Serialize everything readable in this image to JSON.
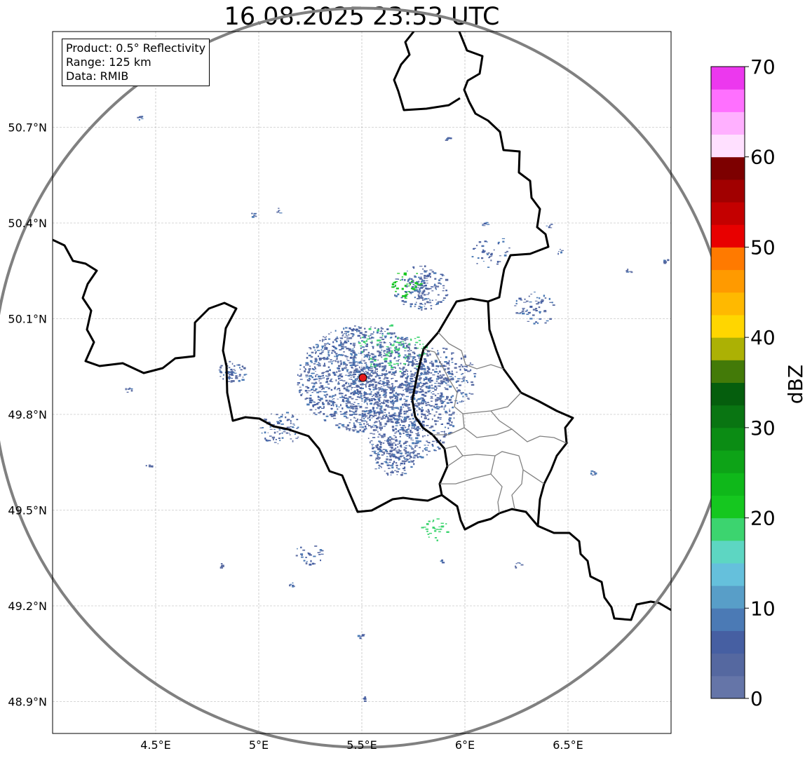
{
  "title": "16.08.2025 23:53 UTC",
  "info": {
    "product": "Product: 0.5° Reflectivity",
    "range": "Range: 125 km",
    "data": "Data: RMIB"
  },
  "map": {
    "lon_range": [
      4.0,
      7.0
    ],
    "lat_range": [
      48.8,
      51.0
    ],
    "lon_ticks": [
      "4.5°E",
      "5°E",
      "5.5°E",
      "6°E",
      "6.5°E"
    ],
    "lon_tick_values": [
      4.5,
      5.0,
      5.5,
      6.0,
      6.5
    ],
    "lat_ticks": [
      "50.7°N",
      "50.4°N",
      "50.1°N",
      "49.8°N",
      "49.5°N",
      "49.2°N",
      "48.9°N"
    ],
    "lat_tick_values": [
      50.7,
      50.4,
      50.1,
      49.8,
      49.5,
      49.2,
      48.9
    ],
    "grid": true,
    "radar_site": {
      "lon": 5.505,
      "lat": 49.915
    },
    "range_ring_color": "#808080",
    "border_color": "#000000",
    "admin_border_color": "#808080",
    "site_marker_color": "#e31a1c"
  },
  "colorbar": {
    "label": "dBZ",
    "min": 0,
    "max": 70,
    "tick_labels": [
      "0",
      "10",
      "20",
      "30",
      "40",
      "50",
      "60",
      "70"
    ],
    "tick_values": [
      0,
      10,
      20,
      30,
      40,
      50,
      60,
      70
    ],
    "colors": [
      "#6575a8",
      "#5568a0",
      "#465fa2",
      "#4b7ab5",
      "#589ec8",
      "#65c0dc",
      "#5dd6c2",
      "#3cd46f",
      "#15c71f",
      "#0fb81a",
      "#0da317",
      "#0b8c14",
      "#097512",
      "#055e0d",
      "#437a08",
      "#acb104",
      "#ffd600",
      "#ffb900",
      "#ff9a00",
      "#ff7a00",
      "#e80000",
      "#c40000",
      "#a10000",
      "#7d0000",
      "#ffe0ff",
      "#ffb0ff",
      "#ff70ff",
      "#ec38ee"
    ]
  }
}
